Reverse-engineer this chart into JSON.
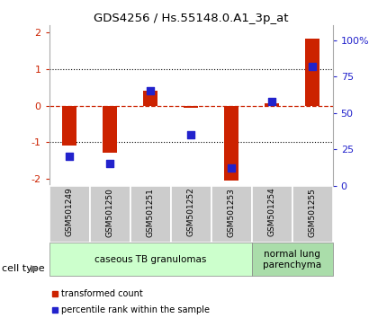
{
  "title": "GDS4256 / Hs.55148.0.A1_3p_at",
  "samples": [
    "GSM501249",
    "GSM501250",
    "GSM501251",
    "GSM501252",
    "GSM501253",
    "GSM501254",
    "GSM501255"
  ],
  "transformed_count": [
    -1.1,
    -1.3,
    0.4,
    -0.05,
    -2.05,
    0.07,
    1.85
  ],
  "percentile_rank": [
    20,
    15,
    65,
    35,
    12,
    58,
    82
  ],
  "red_color": "#cc2200",
  "blue_color": "#2222cc",
  "ylim_left": [
    -2.2,
    2.2
  ],
  "ylim_right": [
    0,
    110
  ],
  "yticks_left": [
    -2,
    -1,
    0,
    1,
    2
  ],
  "yticks_right": [
    0,
    25,
    50,
    75,
    100
  ],
  "ytick_labels_right": [
    "0",
    "25",
    "50",
    "75",
    "100%"
  ],
  "cell_type_groups": [
    {
      "label": "caseous TB granulomas",
      "start": 0,
      "end": 4,
      "color": "#ccffcc"
    },
    {
      "label": "normal lung\nparenchyma",
      "start": 5,
      "end": 6,
      "color": "#aaddaa"
    }
  ],
  "legend_transformed": "transformed count",
  "legend_percentile": "percentile rank within the sample",
  "cell_type_label": "cell type",
  "bar_width": 0.35,
  "dotted_line_y": [
    1.0,
    -1.0
  ],
  "dashed_line_y": 0.0,
  "xlim": [
    -0.5,
    6.5
  ]
}
